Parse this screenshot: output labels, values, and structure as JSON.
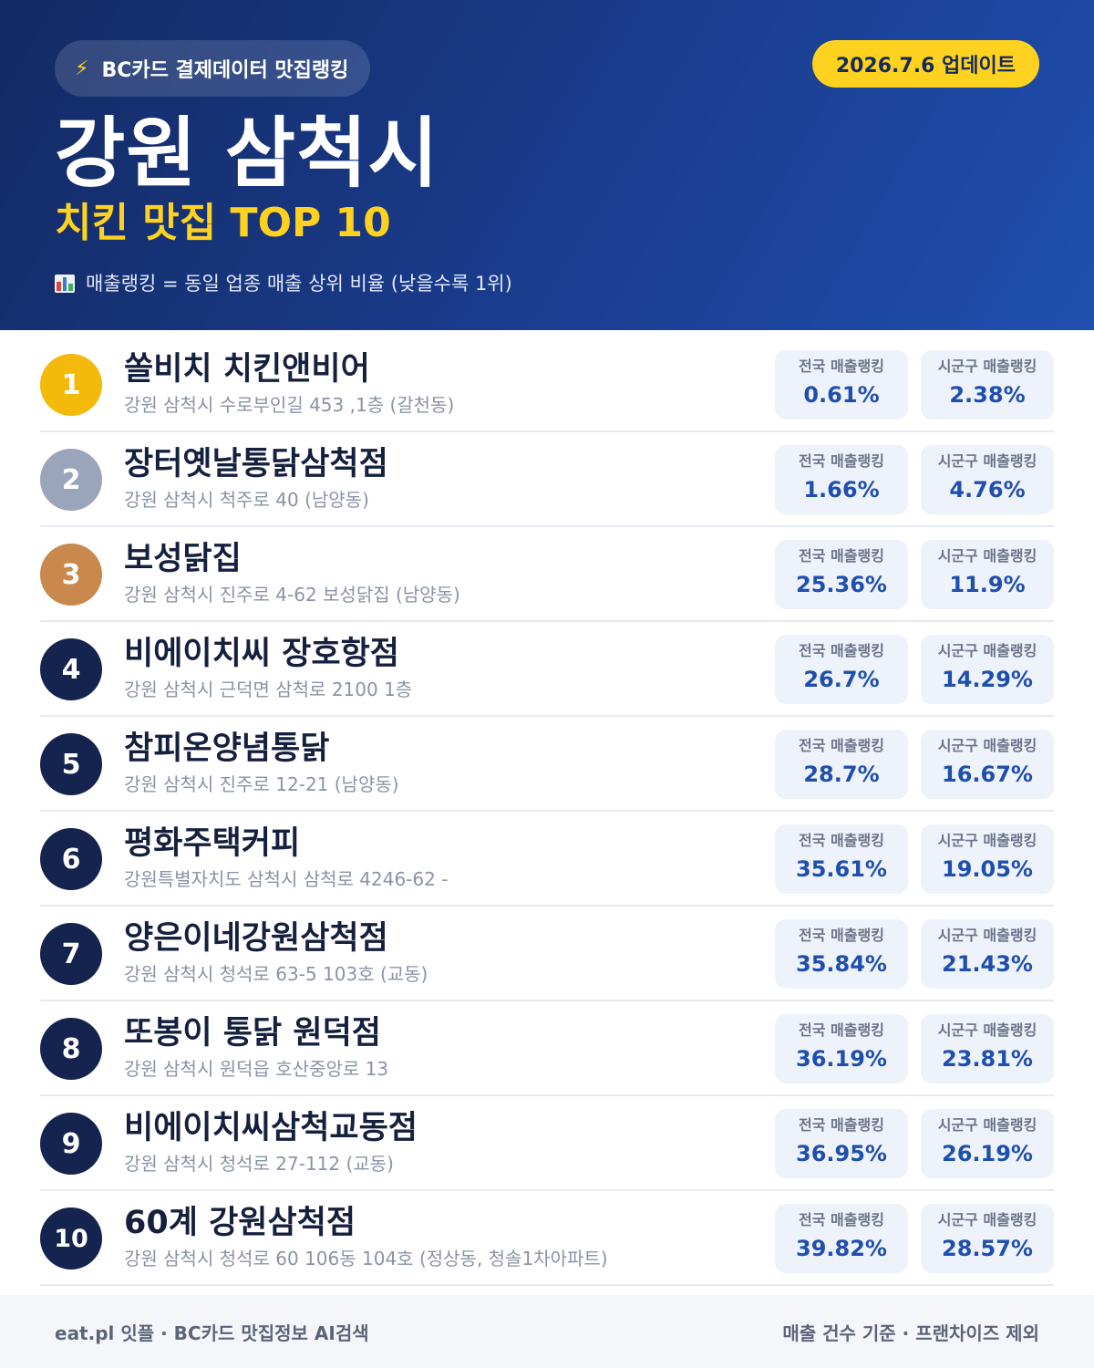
{
  "header": {
    "source_label": "BC카드 결제데이터 맛집랭킹",
    "update_label": "2026.7.6 업데이트",
    "city": "강원 삼척시",
    "subtitle": "치킨 맛집 TOP 10",
    "legend": "매출랭킹 = 동일 업종 매출 상위 비율 (낮을수록 1위)"
  },
  "icons": {
    "source": "lightning-bolt-icon",
    "legend": "bar-chart-icon"
  },
  "colors": {
    "header_bg": "#1a3d8f",
    "accent_yellow": "#ffd21f",
    "gold": "#f3b90b",
    "silver": "#9aa5bc",
    "bronze": "#c9884c",
    "navy": "#15234f",
    "stat_value": "#1f4fae"
  },
  "stat_labels": {
    "national": "전국 매출랭킹",
    "local": "시군구 매출랭킹"
  },
  "restaurants": [
    {
      "rank": "1",
      "name": "쏠비치 치킨앤비어",
      "address": "강원 삼척시 수로부인길 453 ,1층 (갈천동)",
      "national": "0.61%",
      "local": "2.38%"
    },
    {
      "rank": "2",
      "name": "장터옛날통닭삼척점",
      "address": "강원 삼척시 척주로 40 (남양동)",
      "national": "1.66%",
      "local": "4.76%"
    },
    {
      "rank": "3",
      "name": "보성닭집",
      "address": "강원 삼척시 진주로 4-62 보성닭집 (남양동)",
      "national": "25.36%",
      "local": "11.9%"
    },
    {
      "rank": "4",
      "name": "비에이치씨 장호항점",
      "address": "강원 삼척시 근덕면 삼척로 2100 1층",
      "national": "26.7%",
      "local": "14.29%"
    },
    {
      "rank": "5",
      "name": "참피온양념통닭",
      "address": "강원 삼척시 진주로 12-21 (남양동)",
      "national": "28.7%",
      "local": "16.67%"
    },
    {
      "rank": "6",
      "name": "평화주택커피",
      "address": "강원특별자치도 삼척시 삼척로 4246-62 -",
      "national": "35.61%",
      "local": "19.05%"
    },
    {
      "rank": "7",
      "name": "양은이네강원삼척점",
      "address": "강원 삼척시 청석로 63-5 103호 (교동)",
      "national": "35.84%",
      "local": "21.43%"
    },
    {
      "rank": "8",
      "name": "또봉이 통닭 원덕점",
      "address": "강원 삼척시 원덕읍 호산중앙로 13",
      "national": "36.19%",
      "local": "23.81%"
    },
    {
      "rank": "9",
      "name": "비에이치씨삼척교동점",
      "address": "강원 삼척시 청석로 27-112 (교동)",
      "national": "36.95%",
      "local": "26.19%"
    },
    {
      "rank": "10",
      "name": "60계 강원삼척점",
      "address": "강원 삼척시 청석로 60 106동 104호 (정상동, 청솔1차아파트)",
      "national": "39.82%",
      "local": "28.57%"
    }
  ],
  "footer": {
    "left": "eat.pl 잇플 · BC카드 맛집정보 AI검색",
    "right": "매출 건수 기준 · 프랜차이즈 제외"
  }
}
